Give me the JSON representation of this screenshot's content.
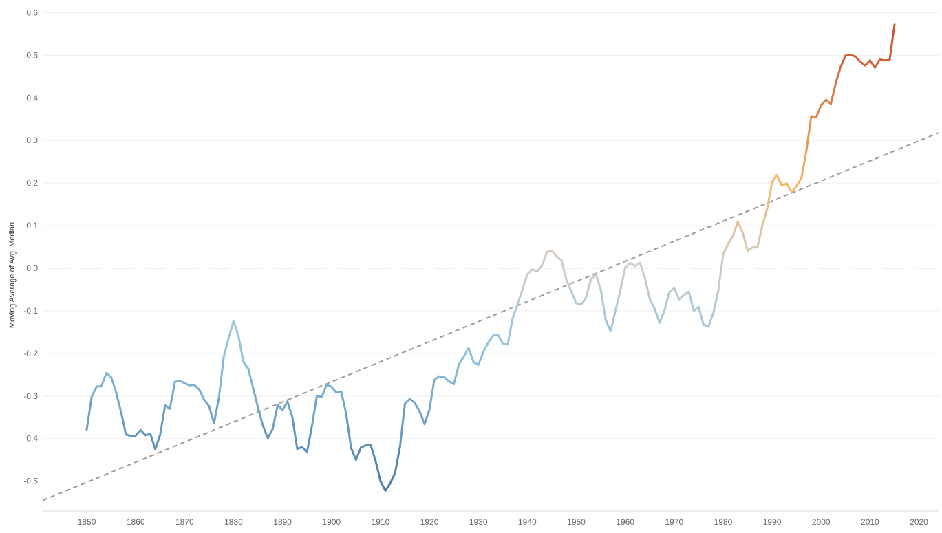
{
  "chart_data": {
    "type": "line",
    "title": "",
    "xlabel": "",
    "ylabel": "Moving Average of Avg. Median",
    "xlim": [
      1841,
      2024
    ],
    "ylim": [
      -0.57,
      0.62
    ],
    "x_ticks": [
      1850,
      1860,
      1870,
      1880,
      1890,
      1900,
      1910,
      1920,
      1930,
      1940,
      1950,
      1960,
      1970,
      1980,
      1990,
      2000,
      2010,
      2020
    ],
    "y_ticks": [
      -0.5,
      -0.4,
      -0.3,
      -0.2,
      -0.1,
      0.0,
      0.1,
      0.2,
      0.3,
      0.4,
      0.5,
      0.6
    ],
    "y_tick_labels": [
      "-0.5",
      "-0.4",
      "-0.3",
      "-0.2",
      "-0.1",
      "0.0",
      "0.1",
      "0.2",
      "0.3",
      "0.4",
      "0.5",
      "0.6"
    ],
    "grid": "horizontal",
    "zero_line": "dotted",
    "color_scale": {
      "low": "#4a7ca8",
      "mid_low": "#8fc3dd",
      "neutral": "#cccccc",
      "mid_high": "#f7b76a",
      "high": "#c5532d",
      "domain": [
        -0.5,
        -0.2,
        0.0,
        0.2,
        0.55
      ]
    },
    "trend_line": {
      "style": "dashed",
      "color": "#999999",
      "x": [
        1841,
        2024
      ],
      "y": [
        -0.545,
        0.318
      ]
    },
    "x": [
      1850,
      1851,
      1852,
      1853,
      1854,
      1855,
      1856,
      1857,
      1858,
      1859,
      1860,
      1861,
      1862,
      1863,
      1864,
      1865,
      1866,
      1867,
      1868,
      1869,
      1870,
      1871,
      1872,
      1873,
      1874,
      1875,
      1876,
      1877,
      1878,
      1879,
      1880,
      1881,
      1882,
      1883,
      1884,
      1885,
      1886,
      1887,
      1888,
      1889,
      1890,
      1891,
      1892,
      1893,
      1894,
      1895,
      1896,
      1897,
      1898,
      1899,
      1900,
      1901,
      1902,
      1903,
      1904,
      1905,
      1906,
      1907,
      1908,
      1909,
      1910,
      1911,
      1912,
      1913,
      1914,
      1915,
      1916,
      1917,
      1918,
      1919,
      1920,
      1921,
      1922,
      1923,
      1924,
      1925,
      1926,
      1927,
      1928,
      1929,
      1930,
      1931,
      1932,
      1933,
      1934,
      1935,
      1936,
      1937,
      1938,
      1939,
      1940,
      1941,
      1942,
      1943,
      1944,
      1945,
      1946,
      1947,
      1948,
      1949,
      1950,
      1951,
      1952,
      1953,
      1954,
      1955,
      1956,
      1957,
      1958,
      1959,
      1960,
      1961,
      1962,
      1963,
      1964,
      1965,
      1966,
      1967,
      1968,
      1969,
      1970,
      1971,
      1972,
      1973,
      1974,
      1975,
      1976,
      1977,
      1978,
      1979,
      1980,
      1981,
      1982,
      1983,
      1984,
      1985,
      1986,
      1987,
      1988,
      1989,
      1990,
      1991,
      1992,
      1993,
      1994,
      1995,
      1996,
      1997,
      1998,
      1999,
      2000,
      2001,
      2002,
      2003,
      2004,
      2005,
      2006,
      2007,
      2008,
      2009,
      2010,
      2011,
      2012,
      2013,
      2014,
      2015
    ],
    "values": [
      -0.379,
      -0.302,
      -0.278,
      -0.277,
      -0.246,
      -0.256,
      -0.291,
      -0.337,
      -0.39,
      -0.394,
      -0.393,
      -0.38,
      -0.392,
      -0.389,
      -0.425,
      -0.391,
      -0.322,
      -0.33,
      -0.267,
      -0.264,
      -0.27,
      -0.275,
      -0.274,
      -0.285,
      -0.309,
      -0.324,
      -0.364,
      -0.304,
      -0.208,
      -0.163,
      -0.124,
      -0.159,
      -0.22,
      -0.236,
      -0.282,
      -0.328,
      -0.37,
      -0.399,
      -0.377,
      -0.321,
      -0.333,
      -0.313,
      -0.35,
      -0.424,
      -0.42,
      -0.432,
      -0.371,
      -0.3,
      -0.302,
      -0.274,
      -0.278,
      -0.292,
      -0.29,
      -0.342,
      -0.422,
      -0.45,
      -0.421,
      -0.416,
      -0.415,
      -0.452,
      -0.5,
      -0.522,
      -0.505,
      -0.48,
      -0.418,
      -0.318,
      -0.307,
      -0.316,
      -0.336,
      -0.366,
      -0.332,
      -0.262,
      -0.254,
      -0.255,
      -0.266,
      -0.272,
      -0.226,
      -0.208,
      -0.187,
      -0.22,
      -0.227,
      -0.197,
      -0.175,
      -0.158,
      -0.156,
      -0.178,
      -0.179,
      -0.117,
      -0.085,
      -0.05,
      -0.014,
      -0.003,
      -0.008,
      0.006,
      0.038,
      0.041,
      0.028,
      0.018,
      -0.028,
      -0.055,
      -0.082,
      -0.085,
      -0.069,
      -0.026,
      -0.014,
      -0.05,
      -0.121,
      -0.148,
      -0.1,
      -0.052,
      0.002,
      0.012,
      0.005,
      0.013,
      -0.022,
      -0.072,
      -0.095,
      -0.128,
      -0.1,
      -0.056,
      -0.047,
      -0.073,
      -0.063,
      -0.055,
      -0.1,
      -0.091,
      -0.133,
      -0.137,
      -0.105,
      -0.053,
      0.033,
      0.057,
      0.076,
      0.109,
      0.083,
      0.041,
      0.049,
      0.049,
      0.1,
      0.14,
      0.203,
      0.218,
      0.194,
      0.199,
      0.179,
      0.193,
      0.212,
      0.276,
      0.357,
      0.354,
      0.383,
      0.395,
      0.386,
      0.435,
      0.473,
      0.499,
      0.501,
      0.497,
      0.485,
      0.476,
      0.488,
      0.471,
      0.49,
      0.488,
      0.489,
      0.572
    ]
  }
}
